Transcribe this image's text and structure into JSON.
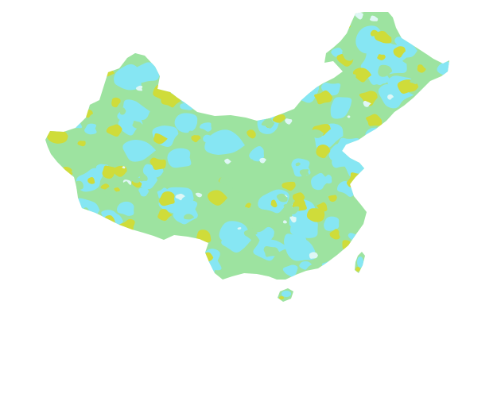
{
  "map": {
    "region": "China",
    "legend_visible": false,
    "title": "",
    "palette": {
      "green": "#9de3a0",
      "cyan": "#86e6f3",
      "yellow": "#cfdc3a",
      "pale": "#dff7f6"
    }
  }
}
